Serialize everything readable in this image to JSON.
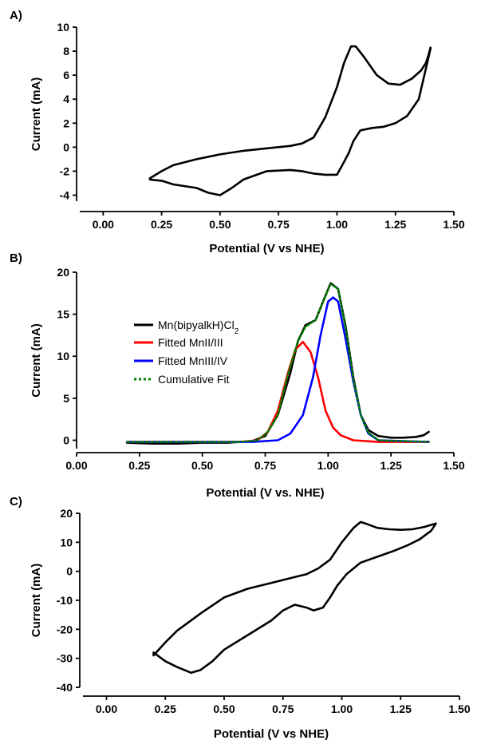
{
  "chart_data": [
    {
      "panel_label": "A)",
      "type": "line",
      "xlabel": "Potential (V vs NHE)",
      "ylabel": "Current (mA)",
      "xlim": [
        -0.1,
        1.5
      ],
      "ylim": [
        -4.5,
        10
      ],
      "xticks": [
        0.0,
        0.25,
        0.5,
        0.75,
        1.0,
        1.25,
        1.5
      ],
      "xtick_labels": [
        "0.00",
        "0.25",
        "0.50",
        "0.75",
        "1.00",
        "1.25",
        "1.50"
      ],
      "yticks": [
        -4,
        -2,
        0,
        2,
        4,
        6,
        8,
        10
      ],
      "ytick_labels": [
        "-4",
        "-2",
        "0",
        "2",
        "4",
        "6",
        "8",
        "10"
      ],
      "series": [
        {
          "color": "#000000",
          "closed": true,
          "x": [
            0.2,
            0.25,
            0.3,
            0.4,
            0.5,
            0.6,
            0.7,
            0.8,
            0.85,
            0.9,
            0.95,
            1.0,
            1.03,
            1.06,
            1.08,
            1.12,
            1.17,
            1.22,
            1.27,
            1.32,
            1.36,
            1.38,
            1.39,
            1.4,
            1.4,
            1.35,
            1.3,
            1.25,
            1.2,
            1.15,
            1.1,
            1.07,
            1.05,
            1.02,
            1.0,
            0.97,
            0.95,
            0.9,
            0.85,
            0.8,
            0.7,
            0.6,
            0.55,
            0.5,
            0.45,
            0.4,
            0.3,
            0.25,
            0.2
          ],
          "y": [
            -2.6,
            -2.0,
            -1.5,
            -1.0,
            -0.6,
            -0.3,
            -0.1,
            0.1,
            0.3,
            0.8,
            2.5,
            5.0,
            7.0,
            8.4,
            8.4,
            7.4,
            6.0,
            5.3,
            5.2,
            5.7,
            6.4,
            7.0,
            7.6,
            8.3,
            8.2,
            4.0,
            2.6,
            2.0,
            1.7,
            1.6,
            1.4,
            0.5,
            -0.5,
            -1.6,
            -2.3,
            -2.3,
            -2.3,
            -2.2,
            -2.0,
            -1.9,
            -2.0,
            -2.7,
            -3.4,
            -4.0,
            -3.8,
            -3.4,
            -3.1,
            -2.8,
            -2.7
          ]
        }
      ]
    },
    {
      "panel_label": "B)",
      "type": "line",
      "xlabel": "Potential (V vs. NHE)",
      "ylabel": "Current (mA)",
      "xlim": [
        0.0,
        1.5
      ],
      "ylim": [
        -1,
        20
      ],
      "xticks": [
        0.0,
        0.25,
        0.5,
        0.75,
        1.0,
        1.25,
        1.5
      ],
      "xtick_labels": [
        "0.00",
        "0.25",
        "0.50",
        "0.75",
        "1.00",
        "1.25",
        "1.50"
      ],
      "yticks": [
        0,
        5,
        10,
        15,
        20
      ],
      "ytick_labels": [
        "0",
        "5",
        "10",
        "15",
        "20"
      ],
      "legend_position": "left",
      "series": [
        {
          "name": "Mn(bipyalkH)Cl2",
          "color": "#000000",
          "x": [
            0.2,
            0.3,
            0.4,
            0.5,
            0.6,
            0.7,
            0.75,
            0.8,
            0.85,
            0.88,
            0.91,
            0.95,
            0.98,
            1.01,
            1.04,
            1.07,
            1.1,
            1.13,
            1.16,
            1.2,
            1.25,
            1.3,
            1.35,
            1.38,
            1.4
          ],
          "y": [
            -0.3,
            -0.4,
            -0.4,
            -0.3,
            -0.3,
            -0.1,
            0.5,
            3.0,
            8.0,
            11.8,
            13.7,
            14.3,
            16.5,
            18.7,
            18.0,
            13.5,
            7.5,
            3.0,
            1.2,
            0.5,
            0.3,
            0.3,
            0.4,
            0.6,
            1.0
          ]
        },
        {
          "name": "Fitted MnII/III",
          "color": "#ff0000",
          "x": [
            0.2,
            0.5,
            0.65,
            0.72,
            0.76,
            0.8,
            0.84,
            0.87,
            0.9,
            0.93,
            0.96,
            0.99,
            1.02,
            1.05,
            1.1,
            1.2,
            1.4
          ],
          "y": [
            -0.2,
            -0.2,
            -0.2,
            0.0,
            1.0,
            3.5,
            8.0,
            10.8,
            11.7,
            10.5,
            7.5,
            3.5,
            1.5,
            0.6,
            0.0,
            -0.2,
            -0.2
          ]
        },
        {
          "name": "Fitted MnIII/IV",
          "color": "#0000ff",
          "x": [
            0.2,
            0.7,
            0.8,
            0.85,
            0.9,
            0.94,
            0.97,
            1.0,
            1.02,
            1.04,
            1.07,
            1.1,
            1.13,
            1.16,
            1.2,
            1.4
          ],
          "y": [
            -0.2,
            -0.2,
            0.0,
            0.8,
            3.0,
            7.5,
            12.5,
            16.5,
            17.0,
            16.5,
            12.0,
            7.0,
            3.0,
            0.8,
            0.0,
            -0.2
          ]
        },
        {
          "name": "Cumulative Fit",
          "color": "#008000",
          "dashed": true,
          "x": [
            0.2,
            0.5,
            0.65,
            0.72,
            0.76,
            0.8,
            0.84,
            0.88,
            0.91,
            0.95,
            0.98,
            1.01,
            1.04,
            1.07,
            1.1,
            1.13,
            1.16,
            1.2,
            1.4
          ],
          "y": [
            -0.2,
            -0.2,
            -0.2,
            0.0,
            1.0,
            3.0,
            7.8,
            11.8,
            13.5,
            14.3,
            16.5,
            18.6,
            18.0,
            13.3,
            7.3,
            3.0,
            0.9,
            0.0,
            -0.2
          ]
        }
      ]
    },
    {
      "panel_label": "C)",
      "type": "line",
      "xlabel": "Potential (V vs NHE)",
      "ylabel": "Current (mA)",
      "xlim": [
        -0.1,
        1.5
      ],
      "ylim": [
        -40,
        20
      ],
      "xticks": [
        0.0,
        0.25,
        0.5,
        0.75,
        1.0,
        1.25,
        1.5
      ],
      "xtick_labels": [
        "0.00",
        "0.25",
        "0.50",
        "0.75",
        "1.00",
        "1.25",
        "1.50"
      ],
      "yticks": [
        -40,
        -30,
        -20,
        -10,
        0,
        10,
        20
      ],
      "ytick_labels": [
        "-40",
        "-30",
        "-20",
        "-10",
        "0",
        "10",
        "20"
      ],
      "series": [
        {
          "color": "#000000",
          "closed": true,
          "x": [
            0.2,
            0.25,
            0.3,
            0.4,
            0.5,
            0.6,
            0.7,
            0.8,
            0.85,
            0.9,
            0.95,
            1.0,
            1.05,
            1.08,
            1.1,
            1.15,
            1.2,
            1.25,
            1.3,
            1.35,
            1.4,
            1.38,
            1.33,
            1.28,
            1.22,
            1.15,
            1.08,
            1.02,
            0.98,
            0.95,
            0.92,
            0.88,
            0.85,
            0.8,
            0.75,
            0.7,
            0.6,
            0.5,
            0.45,
            0.4,
            0.36,
            0.3,
            0.25,
            0.2
          ],
          "y": [
            -29.0,
            -24.5,
            -20.5,
            -14.5,
            -9.0,
            -6.0,
            -4.0,
            -2.0,
            -1.0,
            1.0,
            4.0,
            10.0,
            15.0,
            17.0,
            16.5,
            15.0,
            14.5,
            14.3,
            14.5,
            15.3,
            16.5,
            14.0,
            11.0,
            9.0,
            7.0,
            5.0,
            3.0,
            -1.0,
            -5.0,
            -9.0,
            -12.5,
            -13.5,
            -12.5,
            -11.5,
            -13.5,
            -17.0,
            -22.0,
            -27.0,
            -31.0,
            -34.0,
            -35.0,
            -33.0,
            -31.0,
            -28.0
          ]
        }
      ]
    }
  ],
  "legend_text": {
    "line1_main": "Mn(bipyalkH)Cl",
    "line1_sub": "2",
    "line2": "Fitted MnII/III",
    "line3": "Fitted MnIII/IV",
    "line4": "Cumulative Fit"
  }
}
